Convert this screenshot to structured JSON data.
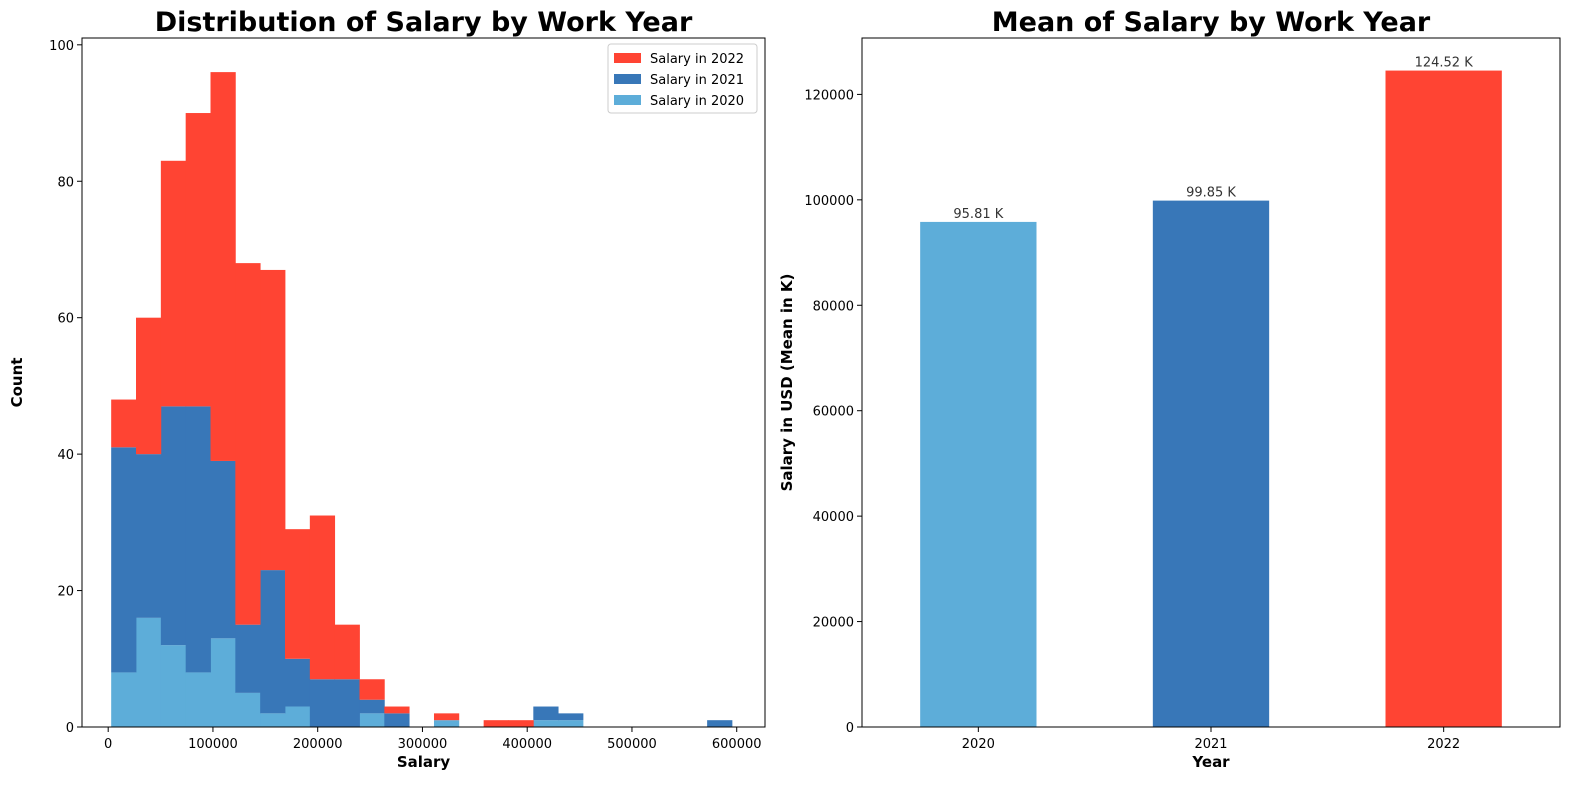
{
  "chart_data": [
    {
      "type": "bar",
      "subtype": "stacked-histogram",
      "title": "Distribution of Salary by Work Year",
      "xlabel": "Salary",
      "ylabel": "Count",
      "xlim": [
        -25000,
        627000
      ],
      "ylim": [
        0,
        101
      ],
      "xticks": [
        0,
        100000,
        200000,
        300000,
        400000,
        500000,
        600000
      ],
      "xtick_labels": [
        "0",
        "100000",
        "200000",
        "300000",
        "400000",
        "500000",
        "600000"
      ],
      "yticks": [
        0,
        20,
        40,
        60,
        80,
        100
      ],
      "ytick_labels": [
        "0",
        "20",
        "40",
        "60",
        "80",
        "100"
      ],
      "bin_edges": [
        2859,
        26563,
        50267,
        73971,
        97675,
        121379,
        145083,
        168787,
        192491,
        216195,
        239899,
        263603,
        287307,
        311011,
        334715,
        358419,
        382123,
        405827,
        429531,
        453235,
        476939,
        500643,
        524347,
        548051,
        571755,
        595459
      ],
      "legend": {
        "position": "top-right",
        "order": [
          "Salary in 2022",
          "Salary in 2021",
          "Salary in 2020"
        ]
      },
      "series": [
        {
          "name": "Salary in 2020",
          "color": "#5DADD9",
          "values": [
            8,
            16,
            12,
            8,
            13,
            5,
            2,
            3,
            0,
            0,
            2,
            0,
            0,
            1,
            0,
            0,
            0,
            1,
            1,
            0,
            0,
            0,
            0,
            0,
            0
          ]
        },
        {
          "name": "Salary in 2021",
          "color": "#3877B8",
          "values": [
            33,
            24,
            35,
            39,
            26,
            10,
            21,
            7,
            7,
            7,
            2,
            2,
            0,
            0,
            0,
            0,
            0,
            2,
            1,
            0,
            0,
            0,
            0,
            0,
            1
          ]
        },
        {
          "name": "Salary in 2022",
          "color": "#FF4433",
          "values": [
            7,
            20,
            36,
            43,
            57,
            53,
            44,
            19,
            24,
            8,
            3,
            1,
            0,
            1,
            0,
            1,
            1,
            0,
            0,
            0,
            0,
            0,
            0,
            0,
            0
          ]
        }
      ]
    },
    {
      "type": "bar",
      "title": "Mean of Salary by Work Year",
      "xlabel": "Year",
      "ylabel": "Salary in USD (Mean in K)",
      "categories": [
        "2020",
        "2021",
        "2022"
      ],
      "values": [
        95813,
        99853,
        124522
      ],
      "data_labels": [
        "95.81 K",
        "99.85 K",
        "124.52 K"
      ],
      "colors": [
        "#5DADD9",
        "#3877B8",
        "#FF4433"
      ],
      "ylim": [
        0,
        130700
      ],
      "yticks": [
        0,
        20000,
        40000,
        60000,
        80000,
        100000,
        120000
      ],
      "ytick_labels": [
        "0",
        "20000",
        "40000",
        "60000",
        "80000",
        "100000",
        "120000"
      ]
    }
  ]
}
